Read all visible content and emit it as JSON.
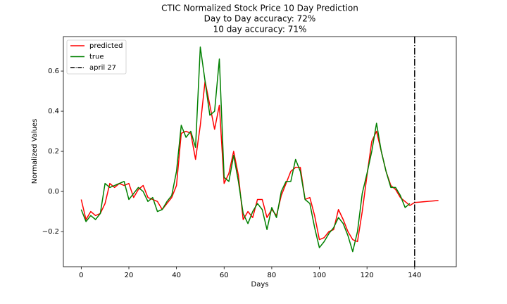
{
  "chart_data": {
    "type": "line",
    "title": "CTIC Normalized Stock Price 10 Day Prediction",
    "subtitle": [
      "Day to Day accuracy: 72%",
      "10 day accuracy: 71%"
    ],
    "xlabel": "Days",
    "ylabel": "Normalized Values",
    "x": [
      0,
      2,
      4,
      6,
      8,
      10,
      12,
      14,
      16,
      18,
      20,
      22,
      24,
      26,
      28,
      30,
      32,
      34,
      36,
      38,
      40,
      42,
      44,
      46,
      48,
      50,
      52,
      54,
      56,
      58,
      60,
      62,
      64,
      66,
      68,
      70,
      72,
      74,
      76,
      78,
      80,
      82,
      84,
      86,
      88,
      90,
      92,
      94,
      96,
      98,
      100,
      102,
      104,
      106,
      108,
      110,
      112,
      114,
      116,
      118,
      120,
      122,
      124,
      126,
      128,
      130,
      132,
      134,
      136,
      138,
      140,
      142,
      144,
      146,
      148,
      150
    ],
    "series": [
      {
        "name": "predicted",
        "color": "#ff0000",
        "values": [
          -0.04,
          -0.14,
          -0.1,
          -0.12,
          -0.11,
          -0.06,
          0.04,
          0.02,
          0.04,
          0.03,
          0.04,
          -0.03,
          0.01,
          0.03,
          -0.03,
          -0.04,
          -0.05,
          -0.09,
          -0.06,
          -0.03,
          0.03,
          0.29,
          0.3,
          0.29,
          0.16,
          0.33,
          0.55,
          0.43,
          0.31,
          0.43,
          0.04,
          0.09,
          0.2,
          0.08,
          -0.14,
          -0.1,
          -0.13,
          -0.04,
          -0.04,
          -0.13,
          -0.09,
          -0.12,
          -0.02,
          0.04,
          0.1,
          0.12,
          0.12,
          -0.04,
          -0.03,
          -0.12,
          -0.24,
          -0.23,
          -0.2,
          -0.19,
          -0.09,
          -0.14,
          -0.2,
          -0.24,
          -0.25,
          -0.1,
          0.08,
          0.25,
          0.3,
          0.2,
          0.1,
          0.03,
          0.01,
          -0.03,
          -0.05,
          -0.07,
          -0.055,
          -0.053,
          -0.051,
          -0.049,
          -0.047,
          -0.045
        ]
      },
      {
        "name": "true",
        "color": "#008000",
        "values": [
          -0.09,
          -0.15,
          -0.12,
          -0.14,
          -0.11,
          0.04,
          0.02,
          0.03,
          0.04,
          0.05,
          -0.04,
          -0.01,
          0.02,
          0.0,
          -0.05,
          -0.03,
          -0.1,
          -0.09,
          -0.05,
          -0.02,
          0.1,
          0.33,
          0.27,
          0.3,
          0.22,
          0.72,
          0.55,
          0.38,
          0.4,
          0.66,
          0.07,
          0.05,
          0.18,
          0.05,
          -0.11,
          -0.16,
          -0.1,
          -0.06,
          -0.09,
          -0.19,
          -0.08,
          -0.13,
          0.0,
          0.05,
          0.05,
          0.16,
          0.1,
          -0.04,
          -0.06,
          -0.18,
          -0.28,
          -0.25,
          -0.21,
          -0.18,
          -0.13,
          -0.16,
          -0.22,
          -0.3,
          -0.2,
          -0.01,
          0.09,
          0.2,
          0.34,
          0.2,
          0.1,
          0.02,
          0.02,
          -0.02,
          -0.08,
          -0.06,
          null,
          null,
          null,
          null,
          null,
          null
        ]
      }
    ],
    "vline": {
      "x": 140,
      "name": "april 27",
      "color": "#000000"
    },
    "xlim": [
      -7.5,
      157.5
    ],
    "ylim": [
      -0.375,
      0.772
    ],
    "xticks": [
      0,
      20,
      40,
      60,
      80,
      100,
      120,
      140
    ],
    "yticks": [
      {
        "value": -0.2,
        "label": "−0.2"
      },
      {
        "value": 0,
        "label": "0.0"
      },
      0.2,
      0.4,
      0.6
    ],
    "grid": false,
    "legend": "upper left"
  }
}
